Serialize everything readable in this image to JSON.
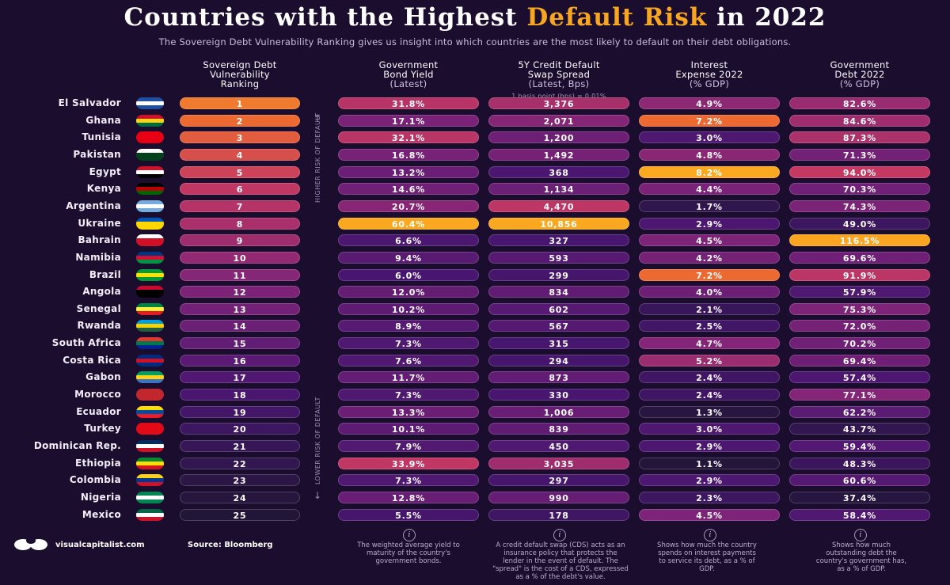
{
  "header": {
    "title_part1": "Countries with the Highest ",
    "title_highlight": "Default Risk",
    "title_part2": " in 2022",
    "subtitle": "The Sovereign Debt Vulnerability Ranking gives us insight into which countries are the most likely to default on their debt obligations."
  },
  "columns": [
    {
      "title": "Sovereign Debt Vulnerability Ranking",
      "line1": "Sovereign Debt",
      "line2": "Vulnerability",
      "line3": "Ranking",
      "note": ""
    },
    {
      "title": "Government Bond Yield",
      "line1": "Government",
      "line2": "Bond Yield",
      "line3": "(Latest)",
      "note": ""
    },
    {
      "title": "5Y Credit Default Swap Spread",
      "line1": "5Y Credit Default",
      "line2": "Swap Spread",
      "line3": "(Latest, Bps)",
      "note": "1 basis point (bps) = 0.01%"
    },
    {
      "title": "Interest Expense 2022",
      "line1": "Interest",
      "line2": "Expense 2022",
      "line3": "(% GDP)",
      "note": ""
    },
    {
      "title": "Government Debt 2022",
      "line1": "Government",
      "line2": "Debt 2022",
      "line3": "(% GDP)",
      "note": ""
    }
  ],
  "risk_labels": {
    "higher": "HIGHER RISK OF DEFAULT",
    "lower": "LOWER RISK OF DEFAULT",
    "up_arrow": "↑",
    "down_arrow": "↓"
  },
  "chart_data": {
    "type": "table",
    "columns": [
      "Country",
      "Sovereign Debt Vulnerability Ranking",
      "Government Bond Yield (Latest)",
      "5Y Credit Default Swap Spread (Latest, Bps)",
      "Interest Expense 2022 (% GDP)",
      "Government Debt 2022 (% GDP)"
    ],
    "rows": [
      {
        "country": "El Salvador",
        "rank": "1",
        "yield": "31.8%",
        "cds": "3,376",
        "interest": "4.9%",
        "debt": "82.6%"
      },
      {
        "country": "Ghana",
        "rank": "2",
        "yield": "17.1%",
        "cds": "2,071",
        "interest": "7.2%",
        "debt": "84.6%"
      },
      {
        "country": "Tunisia",
        "rank": "3",
        "yield": "32.1%",
        "cds": "1,200",
        "interest": "3.0%",
        "debt": "87.3%"
      },
      {
        "country": "Pakistan",
        "rank": "4",
        "yield": "16.8%",
        "cds": "1,492",
        "interest": "4.8%",
        "debt": "71.3%"
      },
      {
        "country": "Egypt",
        "rank": "5",
        "yield": "13.2%",
        "cds": "368",
        "interest": "8.2%",
        "debt": "94.0%"
      },
      {
        "country": "Kenya",
        "rank": "6",
        "yield": "14.6%",
        "cds": "1,134",
        "interest": "4.4%",
        "debt": "70.3%"
      },
      {
        "country": "Argentina",
        "rank": "7",
        "yield": "20.7%",
        "cds": "4,470",
        "interest": "1.7%",
        "debt": "74.3%"
      },
      {
        "country": "Ukraine",
        "rank": "8",
        "yield": "60.4%",
        "cds": "10,856",
        "interest": "2.9%",
        "debt": "49.0%"
      },
      {
        "country": "Bahrain",
        "rank": "9",
        "yield": "6.6%",
        "cds": "327",
        "interest": "4.5%",
        "debt": "116.5%"
      },
      {
        "country": "Namibia",
        "rank": "10",
        "yield": "9.4%",
        "cds": "593",
        "interest": "4.2%",
        "debt": "69.6%"
      },
      {
        "country": "Brazil",
        "rank": "11",
        "yield": "6.0%",
        "cds": "299",
        "interest": "7.2%",
        "debt": "91.9%"
      },
      {
        "country": "Angola",
        "rank": "12",
        "yield": "12.0%",
        "cds": "834",
        "interest": "4.0%",
        "debt": "57.9%"
      },
      {
        "country": "Senegal",
        "rank": "13",
        "yield": "10.2%",
        "cds": "602",
        "interest": "2.1%",
        "debt": "75.3%"
      },
      {
        "country": "Rwanda",
        "rank": "14",
        "yield": "8.9%",
        "cds": "567",
        "interest": "2.5%",
        "debt": "72.0%"
      },
      {
        "country": "South Africa",
        "rank": "15",
        "yield": "7.3%",
        "cds": "315",
        "interest": "4.7%",
        "debt": "70.2%"
      },
      {
        "country": "Costa Rica",
        "rank": "16",
        "yield": "7.6%",
        "cds": "294",
        "interest": "5.2%",
        "debt": "69.4%"
      },
      {
        "country": "Gabon",
        "rank": "17",
        "yield": "11.7%",
        "cds": "873",
        "interest": "2.4%",
        "debt": "57.4%"
      },
      {
        "country": "Morocco",
        "rank": "18",
        "yield": "7.3%",
        "cds": "330",
        "interest": "2.4%",
        "debt": "77.1%"
      },
      {
        "country": "Ecuador",
        "rank": "19",
        "yield": "13.3%",
        "cds": "1,006",
        "interest": "1.3%",
        "debt": "62.2%"
      },
      {
        "country": "Turkey",
        "rank": "20",
        "yield": "10.1%",
        "cds": "839",
        "interest": "3.0%",
        "debt": "43.7%"
      },
      {
        "country": "Dominican Rep.",
        "rank": "21",
        "yield": "7.9%",
        "cds": "450",
        "interest": "2.9%",
        "debt": "59.4%"
      },
      {
        "country": "Ethiopia",
        "rank": "22",
        "yield": "33.9%",
        "cds": "3,035",
        "interest": "1.1%",
        "debt": "48.3%"
      },
      {
        "country": "Colombia",
        "rank": "23",
        "yield": "7.3%",
        "cds": "297",
        "interest": "2.9%",
        "debt": "60.6%"
      },
      {
        "country": "Nigeria",
        "rank": "24",
        "yield": "12.8%",
        "cds": "990",
        "interest": "2.3%",
        "debt": "37.4%"
      },
      {
        "country": "Mexico",
        "rank": "25",
        "yield": "5.5%",
        "cds": "178",
        "interest": "4.5%",
        "debt": "58.4%"
      }
    ]
  },
  "flag_colors": {
    "El Salvador": [
      "#1f4fa0",
      "#ffffff",
      "#1f4fa0"
    ],
    "Ghana": [
      "#ce1126",
      "#fcd116",
      "#006b3f"
    ],
    "Tunisia": [
      "#e70013",
      "#e70013",
      "#e70013"
    ],
    "Pakistan": [
      "#ffffff",
      "#01411c",
      "#01411c"
    ],
    "Egypt": [
      "#ce1126",
      "#ffffff",
      "#000000"
    ],
    "Kenya": [
      "#000000",
      "#bb0000",
      "#006600"
    ],
    "Argentina": [
      "#74acdf",
      "#ffffff",
      "#74acdf"
    ],
    "Ukraine": [
      "#0057b7",
      "#ffd700",
      "#ffd700"
    ],
    "Bahrain": [
      "#ffffff",
      "#ce1126",
      "#ce1126"
    ],
    "Namibia": [
      "#003580",
      "#d21034",
      "#009543"
    ],
    "Brazil": [
      "#009c3b",
      "#ffdf00",
      "#009c3b"
    ],
    "Angola": [
      "#cc092f",
      "#000000",
      "#000000"
    ],
    "Senegal": [
      "#00853f",
      "#fdef42",
      "#e31b23"
    ],
    "Rwanda": [
      "#00a1de",
      "#fad201",
      "#20603d"
    ],
    "South Africa": [
      "#de3831",
      "#007a4d",
      "#002395"
    ],
    "Costa Rica": [
      "#002b7f",
      "#ce1126",
      "#002b7f"
    ],
    "Gabon": [
      "#009e60",
      "#fcd116",
      "#3a75c4"
    ],
    "Morocco": [
      "#c1272d",
      "#c1272d",
      "#c1272d"
    ],
    "Ecuador": [
      "#ffdd00",
      "#034ea2",
      "#ed1c24"
    ],
    "Turkey": [
      "#e30a17",
      "#e30a17",
      "#e30a17"
    ],
    "Dominican Rep.": [
      "#002d62",
      "#ffffff",
      "#ce1126"
    ],
    "Ethiopia": [
      "#078930",
      "#fcdd09",
      "#da121a"
    ],
    "Colombia": [
      "#fcd116",
      "#003893",
      "#ce1126"
    ],
    "Nigeria": [
      "#008751",
      "#ffffff",
      "#008751"
    ],
    "Mexico": [
      "#006847",
      "#ffffff",
      "#ce1126"
    ]
  },
  "footer": {
    "brand": "visualcapitalist.com",
    "source": "Source: Bloomberg",
    "info_glyph": "i",
    "notes": [
      "The weighted average yield to maturity of the country's government bonds.",
      "A credit default swap (CDS) acts as an insurance policy that protects the lender in the event of default. The \"spread\" is the cost of a CDS, expressed as a % of the debt's value.",
      "Shows how much the country spends on interest payments to service its debt, as a % of GDP.",
      "Shows how much outstanding debt the country's government has, as a % of GDP."
    ]
  }
}
